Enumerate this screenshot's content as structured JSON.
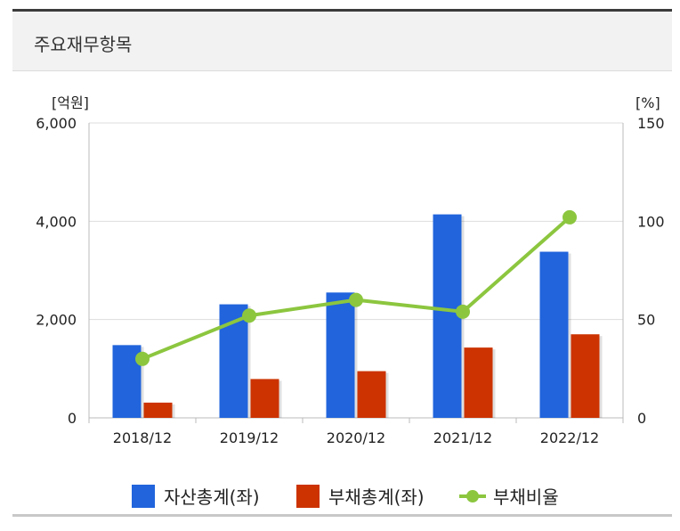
{
  "header": {
    "title": "주요재무항목"
  },
  "chart_data": {
    "type": "bar",
    "categories": [
      "2018/12",
      "2019/12",
      "2020/12",
      "2021/12",
      "2022/12"
    ],
    "series": [
      {
        "name": "자산총계(좌)",
        "type": "bar",
        "axis": "left",
        "color": "#2164dc",
        "values": [
          1480,
          2310,
          2550,
          4140,
          3380
        ]
      },
      {
        "name": "부채총계(좌)",
        "type": "bar",
        "axis": "left",
        "color": "#cc3300",
        "values": [
          310,
          790,
          950,
          1430,
          1700
        ]
      },
      {
        "name": "부채비율",
        "type": "line",
        "axis": "right",
        "color": "#8cc63f",
        "values": [
          30,
          52,
          60,
          54,
          102
        ]
      }
    ],
    "y_left": {
      "unit": "[억원]",
      "min": 0,
      "max": 6000,
      "ticks": [
        "0",
        "2,000",
        "4,000",
        "6,000"
      ]
    },
    "y_right": {
      "unit": "[%]",
      "min": 0,
      "max": 150,
      "ticks": [
        "0",
        "50",
        "100",
        "150"
      ]
    },
    "grid": true,
    "legend_position": "bottom"
  }
}
